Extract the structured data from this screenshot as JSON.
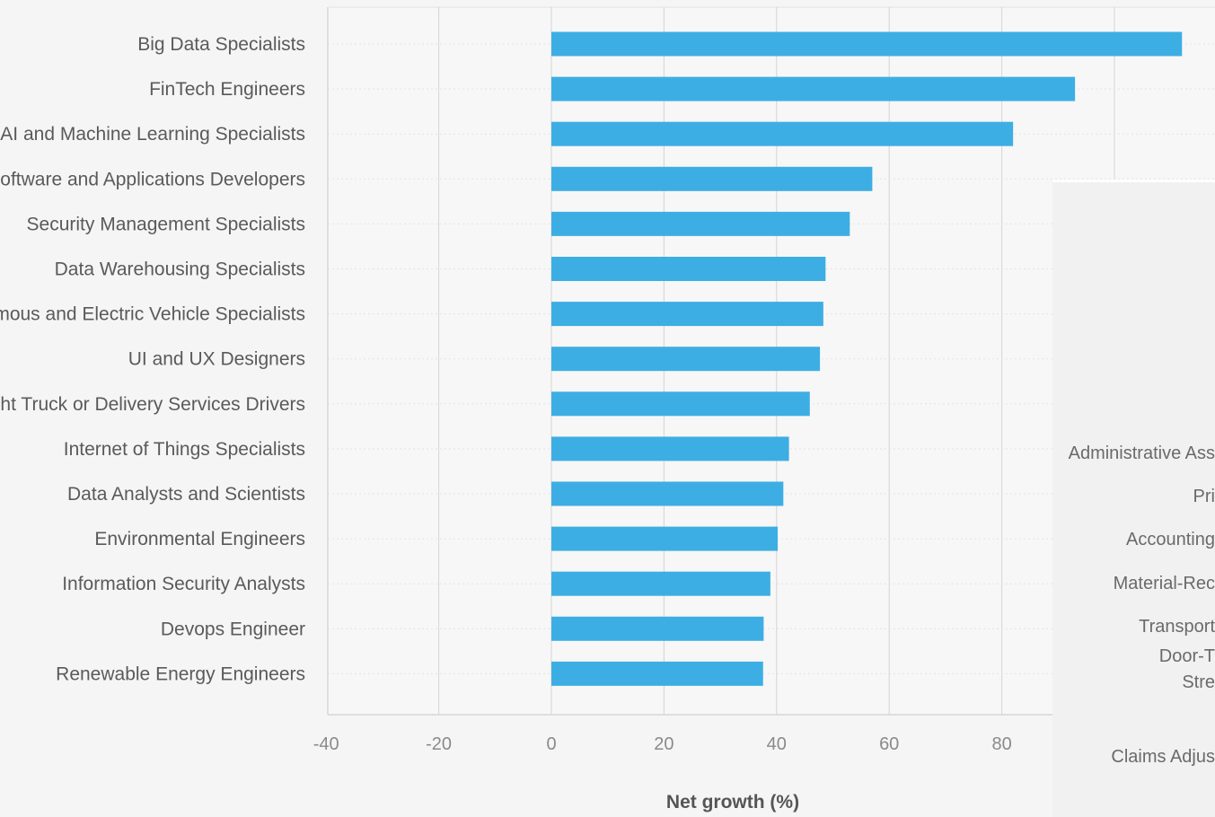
{
  "chart_data": {
    "type": "bar",
    "orientation": "horizontal",
    "categories": [
      "Big Data Specialists",
      "FinTech Engineers",
      "AI and Machine Learning Specialists",
      "Software and Applications Developers",
      "Security Management Specialists",
      "Data Warehousing Specialists",
      "Autonomous and Electric Vehicle Specialists",
      "UI and UX Designers",
      "Light Truck or Delivery Services Drivers",
      "Internet of Things Specialists",
      "Data Analysts and Scientists",
      "Environmental Engineers",
      "Information Security Analysts",
      "Devops Engineer",
      "Renewable Energy Engineers"
    ],
    "values": [
      112,
      93,
      82,
      57,
      53,
      48.7,
      48.3,
      47.7,
      45.9,
      42.2,
      41.2,
      40.2,
      38.9,
      37.7,
      37.6
    ],
    "xlabel": "Net growth (%)",
    "ylabel": "",
    "xlim": [
      -40,
      120
    ],
    "xticks": [
      -40,
      -20,
      0,
      20,
      40,
      60,
      80
    ],
    "grid": true,
    "color": "#3daee3"
  },
  "right_panel": {
    "labels": [
      "Administrative Ass",
      "Pri",
      "Accounting",
      "Material-Rec",
      "Transport",
      "Door-T",
      "Stre",
      "Claims Adjus"
    ]
  }
}
